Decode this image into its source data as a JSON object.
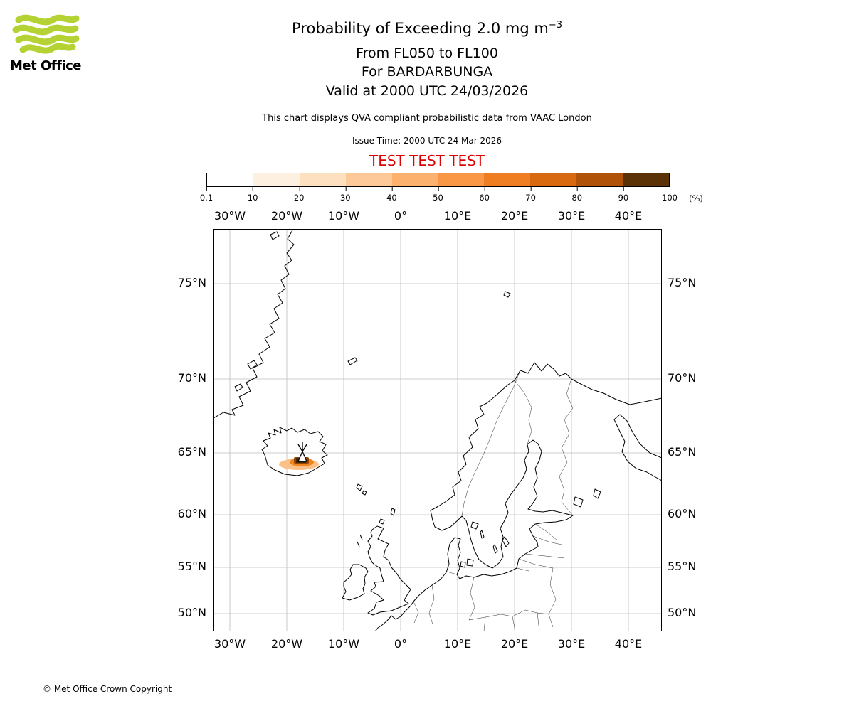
{
  "header": {
    "logo_text": "Met Office",
    "title_prefix": "Probability of Exceeding 2.0 mg m",
    "title_superscript": "−3",
    "subtitle_flight_levels": "From FL050 to FL100",
    "subtitle_volcano": "For BARDARBUNGA",
    "subtitle_valid": "Valid at 2000 UTC 24/03/2026",
    "qva_note": "This chart displays QVA compliant probabilistic data from VAAC London",
    "issue_time": "Issue Time: 2000 UTC 24 Mar 2026",
    "test_banner": "TEST TEST TEST"
  },
  "colorbar": {
    "tick_labels": [
      "0.1",
      "10",
      "20",
      "30",
      "40",
      "50",
      "60",
      "70",
      "80",
      "90",
      "100"
    ],
    "unit": "(%)",
    "colors": [
      "#ffffff",
      "#fef0e0",
      "#fde0c0",
      "#fdc998",
      "#fdb16e",
      "#f99746",
      "#ef7e23",
      "#d96910",
      "#b05309",
      "#5a3206"
    ]
  },
  "map": {
    "x_tick_labels": [
      "30°W",
      "20°W",
      "10°W",
      "0°",
      "10°E",
      "20°E",
      "30°E",
      "40°E"
    ],
    "y_tick_labels": [
      "75°N",
      "70°N",
      "65°N",
      "60°N",
      "55°N",
      "50°N"
    ]
  },
  "footer": {
    "copyright": "© Met Office Crown Copyright"
  },
  "colors": {
    "test_banner": "#dd0000",
    "logo_green": "#b4d233",
    "gridline": "#bdbdbd",
    "coastline": "#000000",
    "ash_light": "#fdc088",
    "ash_mid": "#f0851e",
    "ash_dark": "#8f4406",
    "ash_core": "#40260a"
  },
  "chart_data": {
    "type": "heatmap",
    "title": "Probability of Exceeding 2.0 mg m⁻³",
    "subtitle": [
      "From FL050 to FL100",
      "For BARDARBUNGA",
      "Valid at 2000 UTC 24/03/2026"
    ],
    "issue_time": "2000 UTC 24 Mar 2026",
    "source": "VAAC London QVA compliant probabilistic data",
    "projection": "mercator",
    "grid": true,
    "x_axis": {
      "label": "longitude",
      "ticks_deg": [
        -30,
        -20,
        -10,
        0,
        10,
        20,
        30,
        40
      ],
      "tick_labels": [
        "30°W",
        "20°W",
        "10°W",
        "0°",
        "10°E",
        "20°E",
        "30°E",
        "40°E"
      ],
      "range_deg": [
        -32.9,
        45.9
      ]
    },
    "y_axis": {
      "label": "latitude",
      "ticks_deg": [
        75,
        70,
        65,
        60,
        55,
        50
      ],
      "tick_labels": [
        "75°N",
        "70°N",
        "65°N",
        "60°N",
        "55°N",
        "50°N"
      ],
      "range_deg": [
        47.9,
        77.3
      ]
    },
    "colorbar": {
      "unit": "%",
      "tick_values": [
        0.1,
        10,
        20,
        30,
        40,
        50,
        60,
        70,
        80,
        90,
        100
      ],
      "orientation": "horizontal",
      "position": "above map"
    },
    "exceedance_threshold": "2.0 mg m⁻³",
    "flight_levels": "FL050–FL100",
    "volcano_marker": {
      "name": "BARDARBUNGA",
      "lon": -17.5,
      "lat": 64.6
    },
    "probability_region": {
      "location": "southern Iceland, at and west-southwest of the volcano",
      "lon_range": [
        -20.5,
        -16.3
      ],
      "lat_range": [
        63.9,
        64.8
      ],
      "max_probability_percent": 100,
      "note": "small concentrated plume; probability decreases outward from a dark high-probability core adjacent to the volcano"
    },
    "legend_position": "top-colorbar"
  }
}
